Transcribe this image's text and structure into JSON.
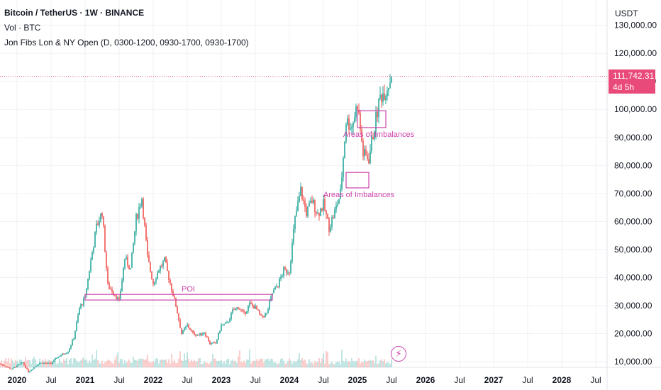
{
  "legend": {
    "title": "Bitcoin / TetherUS · 1W · BINANCE",
    "volume": "Vol · BTC",
    "indicator": "Jon Fibs Lon & NY Open (D, 0300-1200, 0930-1700, 0930-1700)"
  },
  "price_axis": {
    "currency": "USDT",
    "last_price": "111,742.31",
    "countdown": "4d 5h"
  },
  "colors": {
    "up": "#26a69a",
    "down": "#ef5350",
    "annotation": "#cc44aa",
    "price_line": "#e84a7a",
    "grid": "#eef0f3"
  },
  "chart_data": {
    "type": "candlestick",
    "title": "Bitcoin / TetherUS · 1W · BINANCE",
    "ylim": [
      8000,
      139000
    ],
    "y_ticks": [
      "10,000.00",
      "20,000.00",
      "30,000.00",
      "40,000.00",
      "50,000.00",
      "60,000.00",
      "70,000.00",
      "80,000.00",
      "90,000.00",
      "100,000.00",
      "110,000.00",
      "120,000.00",
      "130,000.00"
    ],
    "x_ticks": [
      "2020",
      "Jul",
      "2021",
      "Jul",
      "2022",
      "Jul",
      "2023",
      "Jul",
      "2024",
      "Jul",
      "2025",
      "Jul",
      "2026",
      "Jul",
      "2027",
      "Jul",
      "2028",
      "Jul"
    ],
    "x_range": [
      "2019-10",
      "2028-09"
    ],
    "close_series": [
      [
        "2019-10",
        9300
      ],
      [
        "2019-12",
        7300
      ],
      [
        "2020-02",
        9700
      ],
      [
        "2020-03",
        6400
      ],
      [
        "2020-05",
        9600
      ],
      [
        "2020-07",
        9300
      ],
      [
        "2020-08",
        11500
      ],
      [
        "2020-10",
        13700
      ],
      [
        "2020-11",
        18500
      ],
      [
        "2020-12",
        29000
      ],
      [
        "2021-01",
        33000
      ],
      [
        "2021-02",
        46000
      ],
      [
        "2021-03",
        58000
      ],
      [
        "2021-04",
        63500
      ],
      [
        "2021-05",
        37000
      ],
      [
        "2021-06",
        35000
      ],
      [
        "2021-07",
        31500
      ],
      [
        "2021-08",
        47000
      ],
      [
        "2021-09",
        43000
      ],
      [
        "2021-10",
        61000
      ],
      [
        "2021-11",
        68500
      ],
      [
        "2021-12",
        47000
      ],
      [
        "2022-01",
        38000
      ],
      [
        "2022-02",
        43000
      ],
      [
        "2022-03",
        46000
      ],
      [
        "2022-04",
        38000
      ],
      [
        "2022-05",
        30000
      ],
      [
        "2022-06",
        20000
      ],
      [
        "2022-07",
        23000
      ],
      [
        "2022-08",
        20000
      ],
      [
        "2022-09",
        19500
      ],
      [
        "2022-10",
        20500
      ],
      [
        "2022-11",
        16500
      ],
      [
        "2022-12",
        16500
      ],
      [
        "2023-01",
        23000
      ],
      [
        "2023-02",
        23500
      ],
      [
        "2023-03",
        28000
      ],
      [
        "2023-04",
        29500
      ],
      [
        "2023-05",
        27000
      ],
      [
        "2023-06",
        30500
      ],
      [
        "2023-07",
        29300
      ],
      [
        "2023-08",
        26000
      ],
      [
        "2023-09",
        27000
      ],
      [
        "2023-10",
        34500
      ],
      [
        "2023-11",
        37500
      ],
      [
        "2023-12",
        42500
      ],
      [
        "2024-01",
        42500
      ],
      [
        "2024-02",
        61000
      ],
      [
        "2024-03",
        71000
      ],
      [
        "2024-04",
        63000
      ],
      [
        "2024-05",
        67500
      ],
      [
        "2024-06",
        62700
      ],
      [
        "2024-07",
        66000
      ],
      [
        "2024-08",
        58000
      ],
      [
        "2024-09",
        63500
      ],
      [
        "2024-10",
        70000
      ],
      [
        "2024-11",
        96000
      ],
      [
        "2024-12",
        94000
      ],
      [
        "2025-01",
        102000
      ],
      [
        "2025-02",
        84000
      ],
      [
        "2025-03",
        82500
      ],
      [
        "2025-04",
        94000
      ],
      [
        "2025-05",
        104500
      ],
      [
        "2025-06",
        107000
      ],
      [
        "2025-07",
        111742
      ]
    ],
    "last_price": 111742.31,
    "annotations": [
      {
        "label": "POI",
        "price_low": 32000,
        "price_high": 34000,
        "from": "2021-01",
        "to": "2023-10"
      },
      {
        "label": "Areas of Imbalances",
        "price_low": 72000,
        "price_high": 77500,
        "from": "2024-11",
        "to": "2025-03"
      },
      {
        "label": "Areas of Imbalances",
        "price_low": 93500,
        "price_high": 99500,
        "from": "2025-01",
        "to": "2025-06"
      }
    ],
    "volume_series_name": "Vol · BTC"
  }
}
